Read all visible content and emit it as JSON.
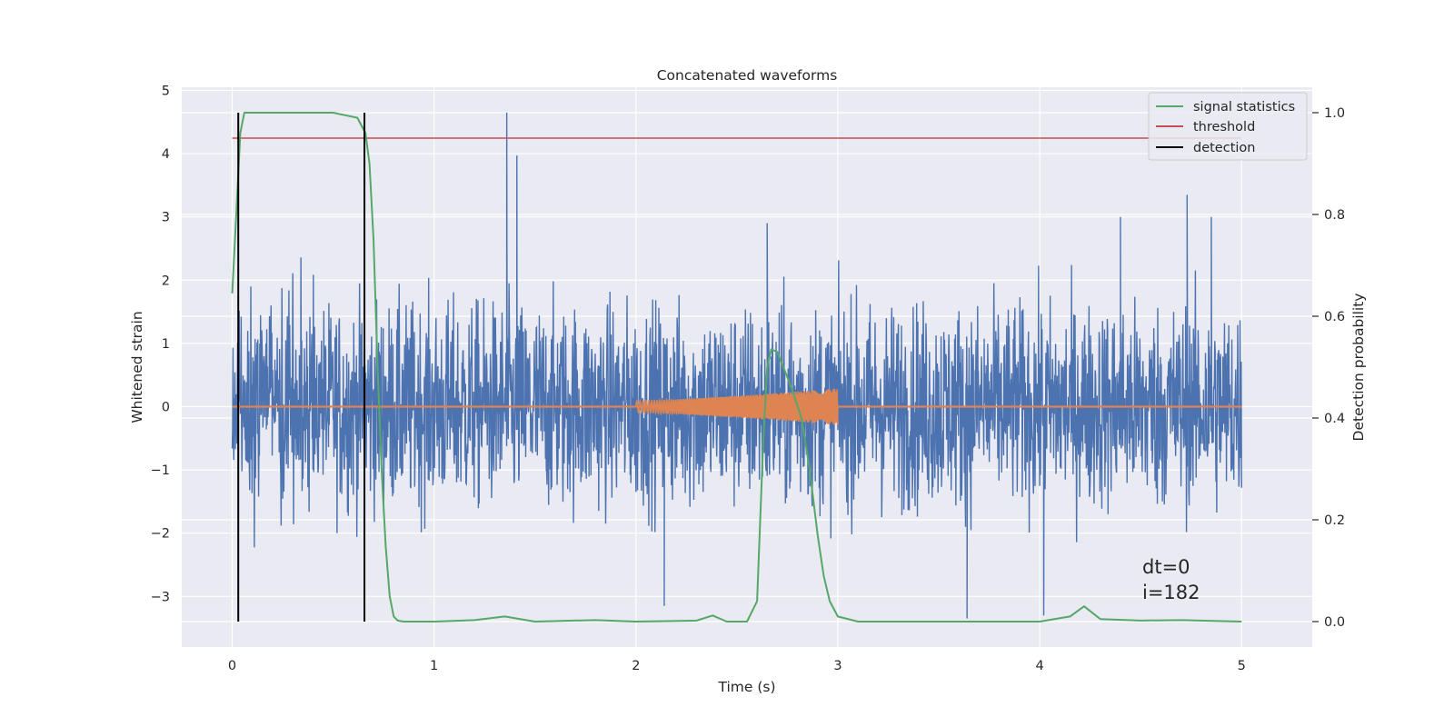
{
  "chart_data": {
    "type": "line",
    "title": "Concatenated waveforms",
    "xlabel": "Time (s)",
    "ylabel": "Whitened strain",
    "ylabel_right": "Detection probability",
    "xlim": [
      -0.25,
      5.35
    ],
    "ylim_left": [
      -3.8,
      5.05
    ],
    "ylim_right": [
      -0.05,
      1.05
    ],
    "xticks": [
      0,
      1,
      2,
      3,
      4,
      5
    ],
    "yticks_left": [
      -3,
      -2,
      -1,
      0,
      1,
      2,
      3,
      4,
      5
    ],
    "yticks_right": [
      0.0,
      0.2,
      0.4,
      0.6,
      0.8,
      1.0
    ],
    "xtick_labels": [
      "0",
      "1",
      "2",
      "3",
      "4",
      "5"
    ],
    "ytick_labels_left": [
      "−3",
      "−2",
      "−1",
      "0",
      "1",
      "2",
      "3",
      "4",
      "5"
    ],
    "ytick_labels_right": [
      "0.0",
      "0.2",
      "0.4",
      "0.6",
      "0.8",
      "1.0"
    ],
    "grid": true,
    "legend_position": "top-right",
    "colors": {
      "background": "#eaeaf2",
      "grid": "#ffffff",
      "strain": "#4c72b0",
      "injection": "#dd8452",
      "statistics": "#55a868",
      "threshold": "#c44e52",
      "detection": "#000000"
    },
    "series": [
      {
        "name": "signal statistics",
        "axis": "right",
        "x": [
          0.0,
          0.02,
          0.04,
          0.06,
          0.08,
          0.1,
          0.15,
          0.3,
          0.5,
          0.62,
          0.66,
          0.68,
          0.7,
          0.72,
          0.74,
          0.76,
          0.78,
          0.8,
          0.82,
          0.85,
          0.9,
          1.0,
          1.2,
          1.35,
          1.5,
          1.8,
          2.0,
          2.3,
          2.38,
          2.45,
          2.55,
          2.6,
          2.63,
          2.65,
          2.67,
          2.7,
          2.73,
          2.77,
          2.82,
          2.86,
          2.9,
          2.93,
          2.96,
          3.0,
          3.1,
          3.5,
          4.0,
          4.15,
          4.22,
          4.3,
          4.5,
          4.7,
          5.0
        ],
        "y": [
          0.645,
          0.8,
          0.96,
          1.0,
          1.0,
          1.0,
          1.0,
          1.0,
          1.0,
          0.99,
          0.96,
          0.9,
          0.75,
          0.5,
          0.3,
          0.15,
          0.05,
          0.01,
          0.002,
          0.0,
          0.0,
          0.0,
          0.003,
          0.01,
          0.0,
          0.003,
          0.0,
          0.002,
          0.012,
          0.0,
          0.0,
          0.04,
          0.35,
          0.5,
          0.535,
          0.53,
          0.5,
          0.46,
          0.4,
          0.3,
          0.17,
          0.09,
          0.04,
          0.01,
          0.0,
          0.0,
          0.0,
          0.01,
          0.03,
          0.005,
          0.002,
          0.003,
          0.0
        ]
      },
      {
        "name": "threshold",
        "axis": "right",
        "x": [
          0.0,
          5.0
        ],
        "y": [
          0.95,
          0.95
        ]
      },
      {
        "name": "detection",
        "axis": "right",
        "x_lines": [
          0.03,
          0.655
        ],
        "y_range": [
          0.0,
          1.0
        ]
      },
      {
        "name": "",
        "axis": "left",
        "kind": "noise",
        "x_range": [
          0.0,
          5.0
        ],
        "y_range_typical": [
          -2.2,
          2.2
        ],
        "peaks": [
          {
            "x": 1.36,
            "y": 4.65
          },
          {
            "x": 1.41,
            "y": 3.97
          },
          {
            "x": 4.73,
            "y": 3.35
          },
          {
            "x": 4.4,
            "y": 3.0
          },
          {
            "x": 4.85,
            "y": 3.0
          },
          {
            "x": 2.65,
            "y": 2.9
          },
          {
            "x": 3.64,
            "y": -3.35
          },
          {
            "x": 4.02,
            "y": -3.3
          },
          {
            "x": 2.14,
            "y": -3.15
          }
        ]
      },
      {
        "name": "",
        "axis": "left",
        "kind": "chirp",
        "x_range": [
          2.0,
          3.0
        ],
        "amplitude_range": [
          0.09,
          0.29
        ],
        "baseline": 0.0
      }
    ],
    "annotations": [
      "dt=0",
      "i=182"
    ]
  }
}
